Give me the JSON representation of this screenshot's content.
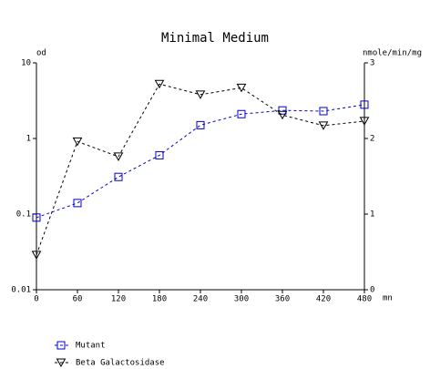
{
  "chart_data": {
    "type": "line",
    "title": "Minimal Medium",
    "y_label": "od",
    "y2_label": "nmole/min/mg",
    "x_label": "mn",
    "x": [
      0,
      60,
      120,
      180,
      240,
      300,
      360,
      420,
      480
    ],
    "xlim": [
      0,
      480
    ],
    "xticks": [
      0,
      60,
      120,
      180,
      240,
      300,
      360,
      420,
      480
    ],
    "ylim": [
      0.01,
      10
    ],
    "yticks": [
      0.01,
      0.1,
      1,
      10
    ],
    "y_scale": "log",
    "y2lim": [
      0,
      3
    ],
    "y2ticks": [
      0,
      1,
      2,
      3
    ],
    "series": [
      {
        "name": "Mutant",
        "color": "#0000cc",
        "marker": "square",
        "dashed": true,
        "values": [
          0.09,
          0.14,
          0.31,
          0.6,
          1.5,
          2.1,
          2.35,
          2.3,
          2.8
        ]
      },
      {
        "name": "Beta Galactosidase",
        "color": "#000000",
        "marker": "triangle-down",
        "dashed": true,
        "axis": "y2",
        "values": [
          0.46,
          1.96,
          1.76,
          2.72,
          2.58,
          2.67,
          2.31,
          2.17,
          2.23
        ]
      }
    ]
  }
}
